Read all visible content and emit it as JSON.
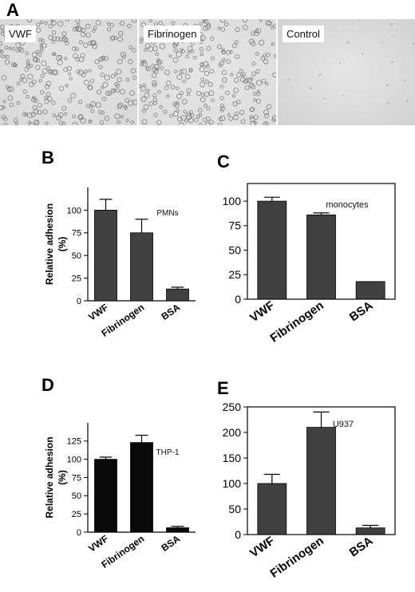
{
  "panels": {
    "a": "A",
    "b": "B",
    "c": "C",
    "d": "D",
    "e": "E"
  },
  "micrographs": [
    {
      "label": "VWF",
      "cells": "dense"
    },
    {
      "label": "Fibrinogen",
      "cells": "dense"
    },
    {
      "label": "Control",
      "cells": "sparse"
    }
  ],
  "chart_data": [
    {
      "id": "B",
      "type": "bar",
      "categories": [
        "VWF",
        "Fibrinogen",
        "BSA"
      ],
      "values": [
        100,
        75,
        13
      ],
      "errors": [
        12,
        15,
        2
      ],
      "annotation": "PMNs",
      "ylabel": "Relative adhesion\n(%)",
      "ylim": [
        0,
        125
      ],
      "yticks": [
        0,
        25,
        50,
        75,
        100
      ],
      "bar_color": "#404040"
    },
    {
      "id": "C",
      "type": "bar",
      "categories": [
        "VWF",
        "Fibrinogen",
        "BSA"
      ],
      "values": [
        100,
        86,
        18
      ],
      "errors": [
        4,
        2,
        0
      ],
      "annotation": "monocytes",
      "ylabel": "",
      "ylim": [
        0,
        118
      ],
      "yticks": [
        0,
        25,
        50,
        75,
        100
      ],
      "bar_color": "#404040"
    },
    {
      "id": "D",
      "type": "bar",
      "categories": [
        "VWF",
        "Fibrinogen",
        "BSA"
      ],
      "values": [
        100,
        123,
        6
      ],
      "errors": [
        3,
        10,
        2
      ],
      "annotation": "THP-1",
      "ylabel": "Relative adhesion\n(%)",
      "ylim": [
        0,
        150
      ],
      "yticks": [
        0,
        25,
        50,
        75,
        100,
        125
      ],
      "bar_color": "#0a0a0a"
    },
    {
      "id": "E",
      "type": "bar",
      "categories": [
        "VWF",
        "Fibrinogen",
        "BSA"
      ],
      "values": [
        100,
        210,
        13
      ],
      "errors": [
        18,
        30,
        5
      ],
      "annotation": "U937",
      "ylabel": "",
      "ylim": [
        0,
        250
      ],
      "yticks": [
        0,
        50,
        100,
        150,
        200,
        250
      ],
      "bar_color": "#404040"
    }
  ]
}
